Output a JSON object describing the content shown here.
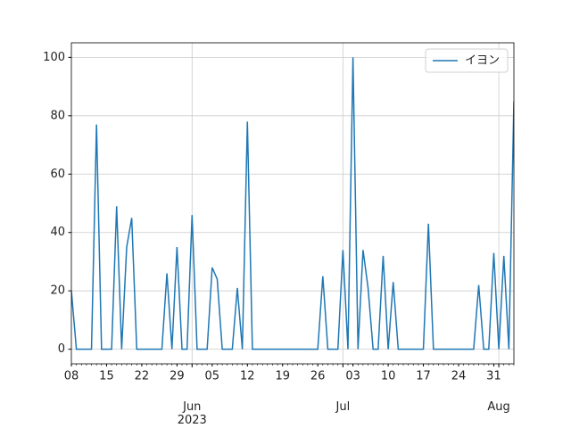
{
  "chart_data": {
    "type": "line",
    "x": [
      "2023-05-08",
      "2023-05-09",
      "2023-05-10",
      "2023-05-11",
      "2023-05-12",
      "2023-05-13",
      "2023-05-14",
      "2023-05-15",
      "2023-05-16",
      "2023-05-17",
      "2023-05-18",
      "2023-05-19",
      "2023-05-20",
      "2023-05-21",
      "2023-05-22",
      "2023-05-23",
      "2023-05-24",
      "2023-05-25",
      "2023-05-26",
      "2023-05-27",
      "2023-05-28",
      "2023-05-29",
      "2023-05-30",
      "2023-05-31",
      "2023-06-01",
      "2023-06-02",
      "2023-06-03",
      "2023-06-04",
      "2023-06-05",
      "2023-06-06",
      "2023-06-07",
      "2023-06-08",
      "2023-06-09",
      "2023-06-10",
      "2023-06-11",
      "2023-06-12",
      "2023-06-13",
      "2023-06-14",
      "2023-06-15",
      "2023-06-16",
      "2023-06-17",
      "2023-06-18",
      "2023-06-19",
      "2023-06-20",
      "2023-06-21",
      "2023-06-22",
      "2023-06-23",
      "2023-06-24",
      "2023-06-25",
      "2023-06-26",
      "2023-06-27",
      "2023-06-28",
      "2023-06-29",
      "2023-06-30",
      "2023-07-01",
      "2023-07-02",
      "2023-07-03",
      "2023-07-04",
      "2023-07-05",
      "2023-07-06",
      "2023-07-07",
      "2023-07-08",
      "2023-07-09",
      "2023-07-10",
      "2023-07-11",
      "2023-07-12",
      "2023-07-13",
      "2023-07-14",
      "2023-07-15",
      "2023-07-16",
      "2023-07-17",
      "2023-07-18",
      "2023-07-19",
      "2023-07-20",
      "2023-07-21",
      "2023-07-22",
      "2023-07-23",
      "2023-07-24",
      "2023-07-25",
      "2023-07-26",
      "2023-07-27",
      "2023-07-28",
      "2023-07-29",
      "2023-07-30",
      "2023-07-31",
      "2023-08-01",
      "2023-08-02",
      "2023-08-03",
      "2023-08-04"
    ],
    "series": [
      {
        "name": "イヨン",
        "color": "#1f77b4",
        "values": [
          20,
          0,
          0,
          0,
          0,
          77,
          0,
          0,
          0,
          49,
          0,
          35,
          45,
          0,
          0,
          0,
          0,
          0,
          0,
          26,
          0,
          35,
          0,
          0,
          46,
          0,
          0,
          0,
          28,
          24,
          0,
          0,
          0,
          21,
          0,
          78,
          0,
          0,
          0,
          0,
          0,
          0,
          0,
          0,
          0,
          0,
          0,
          0,
          0,
          0,
          25,
          0,
          0,
          0,
          34,
          0,
          100,
          0,
          34,
          21,
          0,
          0,
          32,
          0,
          23,
          0,
          0,
          0,
          0,
          0,
          0,
          43,
          0,
          0,
          0,
          0,
          0,
          0,
          0,
          0,
          0,
          22,
          0,
          0,
          33,
          0,
          32,
          0,
          85
        ]
      }
    ],
    "xlim": [
      "2023-05-08",
      "2023-08-04"
    ],
    "xticks": [
      {
        "value": "2023-05-08",
        "label": "08"
      },
      {
        "value": "2023-05-15",
        "label": "15"
      },
      {
        "value": "2023-05-22",
        "label": "22"
      },
      {
        "value": "2023-05-29",
        "label": "29"
      },
      {
        "value": "2023-06-05",
        "label": "05"
      },
      {
        "value": "2023-06-12",
        "label": "12"
      },
      {
        "value": "2023-06-19",
        "label": "19"
      },
      {
        "value": "2023-06-26",
        "label": "26"
      },
      {
        "value": "2023-07-03",
        "label": "03"
      },
      {
        "value": "2023-07-10",
        "label": "10"
      },
      {
        "value": "2023-07-17",
        "label": "17"
      },
      {
        "value": "2023-07-24",
        "label": "24"
      },
      {
        "value": "2023-07-31",
        "label": "31"
      }
    ],
    "x_major_ticks": [
      {
        "value": "2023-06-01",
        "label": "Jun\n2023"
      },
      {
        "value": "2023-07-01",
        "label": "Jul"
      },
      {
        "value": "2023-08-01",
        "label": "Aug"
      }
    ],
    "ylim": [
      -5,
      105
    ],
    "yticks": [
      0,
      20,
      40,
      60,
      80,
      100
    ],
    "grid": true,
    "legend": "upper right"
  }
}
